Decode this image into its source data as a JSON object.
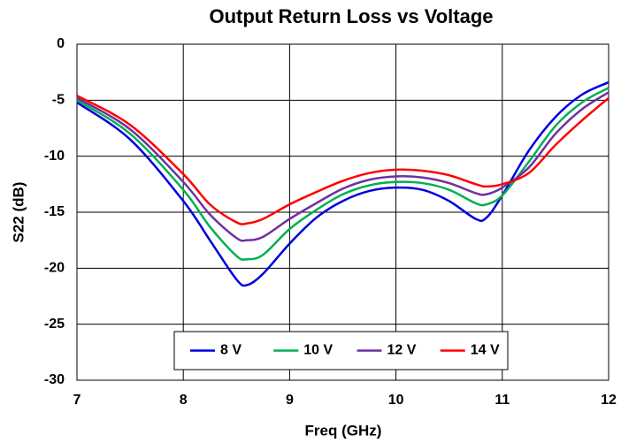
{
  "chart_data": {
    "type": "line",
    "title": "Output Return Loss vs Voltage",
    "xlabel": "Freq (GHz)",
    "ylabel": "S22 (dB)",
    "x": [
      7,
      7.5,
      8,
      8.25,
      8.5,
      8.6,
      8.75,
      9,
      9.25,
      9.5,
      9.75,
      10,
      10.25,
      10.5,
      10.75,
      10.85,
      11,
      11.25,
      11.5,
      11.75,
      12
    ],
    "series": [
      {
        "name": "8 V",
        "color": "#0000e0",
        "values": [
          -5.2,
          -8.5,
          -14,
          -17.5,
          -21,
          -21.5,
          -20.5,
          -17.8,
          -15.5,
          -14,
          -13.1,
          -12.8,
          -13,
          -14,
          -15.6,
          -15.5,
          -13.5,
          -9.5,
          -6.5,
          -4.5,
          -3.4
        ]
      },
      {
        "name": "10 V",
        "color": "#00b050",
        "values": [
          -5.0,
          -8,
          -13,
          -16.3,
          -18.9,
          -19.2,
          -18.8,
          -16.5,
          -14.8,
          -13.4,
          -12.6,
          -12.3,
          -12.4,
          -13.0,
          -14.2,
          -14.3,
          -13.5,
          -10.5,
          -7.3,
          -5.2,
          -3.9
        ]
      },
      {
        "name": "12 V",
        "color": "#7030a0",
        "values": [
          -4.8,
          -7.6,
          -12.3,
          -15.2,
          -17.3,
          -17.5,
          -17.2,
          -15.6,
          -14.2,
          -12.9,
          -12.1,
          -11.8,
          -11.9,
          -12.4,
          -13.3,
          -13.4,
          -12.8,
          -11,
          -8,
          -5.8,
          -4.3
        ]
      },
      {
        "name": "14 V",
        "color": "#ff0000",
        "values": [
          -4.6,
          -7.2,
          -11.6,
          -14.3,
          -15.9,
          -16,
          -15.6,
          -14.3,
          -13.2,
          -12.2,
          -11.5,
          -11.2,
          -11.3,
          -11.7,
          -12.5,
          -12.7,
          -12.5,
          -11.5,
          -9,
          -6.8,
          -4.8
        ]
      }
    ],
    "xlim": [
      7,
      12
    ],
    "xticks": [
      7,
      8,
      9,
      10,
      11,
      12
    ],
    "ylim": [
      -30,
      0
    ],
    "yticks": [
      -30,
      -25,
      -20,
      -15,
      -10,
      -5,
      0
    ],
    "grid": true,
    "legend": "bottom"
  }
}
